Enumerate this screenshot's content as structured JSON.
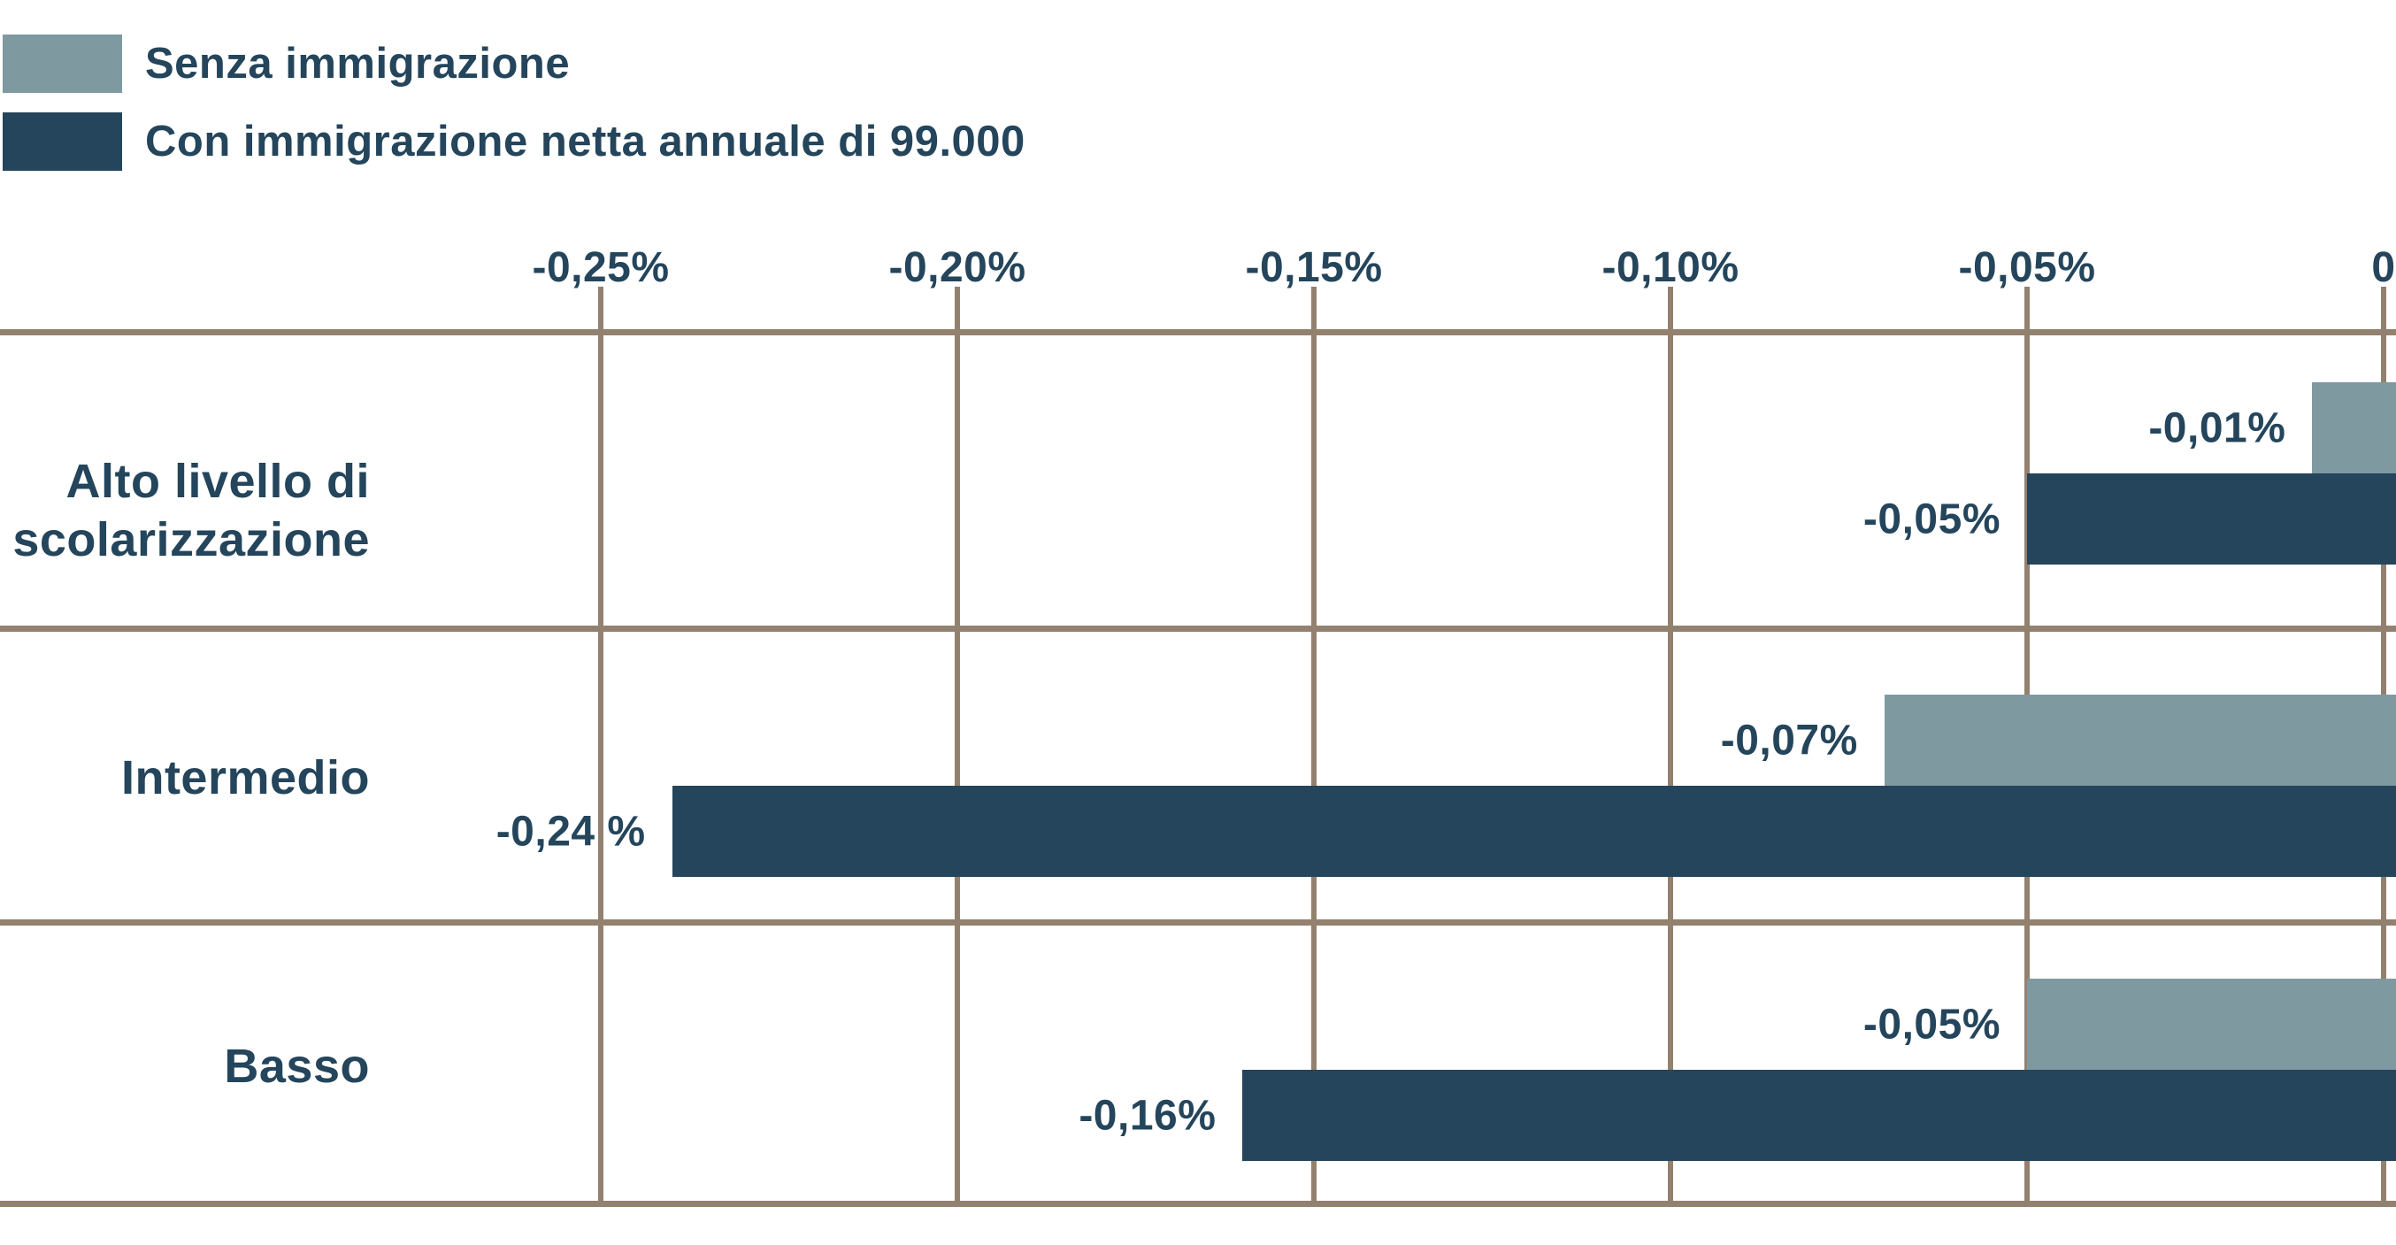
{
  "chart_data": {
    "type": "bar",
    "orientation": "horizontal",
    "legend": [
      {
        "name": "Senza immigrazione",
        "color": "#7f99a1"
      },
      {
        "name": "Con immigrazione netta annuale di 99.000",
        "color": "#24455b"
      }
    ],
    "categories": [
      {
        "id": "alto",
        "label_lines": [
          "Alto livello di",
          "scolarizzazione"
        ]
      },
      {
        "id": "intermedio",
        "label_lines": [
          "Intermedio"
        ]
      },
      {
        "id": "basso",
        "label_lines": [
          "Basso"
        ]
      }
    ],
    "series": [
      {
        "name": "Senza immigrazione",
        "color": "#7f99a1",
        "values": [
          -0.01,
          -0.07,
          -0.05
        ],
        "data_labels": [
          "-0,01%",
          "-0,07%",
          "-0,05%"
        ]
      },
      {
        "name": "Con immigrazione netta annuale di 99.000",
        "color": "#24455b",
        "values": [
          -0.05,
          -0.24,
          -0.16
        ],
        "data_labels": [
          "-0,05%",
          "-0,24 %",
          "-0,16%"
        ]
      }
    ],
    "x_axis": {
      "range": [
        -0.25,
        0
      ],
      "unit": "%",
      "ticks": [
        {
          "value": -0.25,
          "label": "-0,25%"
        },
        {
          "value": -0.2,
          "label": "-0,20%"
        },
        {
          "value": -0.15,
          "label": "-0,15%"
        },
        {
          "value": -0.1,
          "label": "-0,10%"
        },
        {
          "value": -0.05,
          "label": "-0,05%"
        },
        {
          "value": 0,
          "label": "0"
        }
      ]
    },
    "grid": true,
    "colors": {
      "grid": "#93816f",
      "text": "#24455b",
      "background": "#ffffff"
    }
  }
}
